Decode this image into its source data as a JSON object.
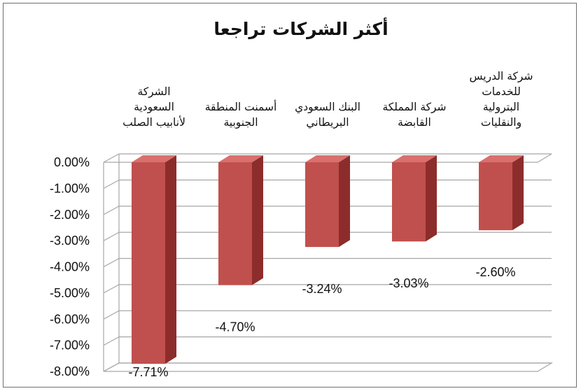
{
  "chart_data": {
    "type": "bar",
    "title": "أكثر الشركات تراجعا",
    "categories": [
      [
        "الشركة",
        "السعودية",
        "لأنابيب الصلب"
      ],
      [
        "أسمنت المنطقة",
        "الجنوبية"
      ],
      [
        "البنك السعودي",
        "البريطاني"
      ],
      [
        "شركة المملكة",
        "القابضة"
      ],
      [
        "شركة الدريس",
        "للخدمات",
        "البترولية",
        "والنقليات"
      ]
    ],
    "values": [
      -7.71,
      -4.7,
      -3.24,
      -3.03,
      -2.6
    ],
    "data_labels": [
      "-7.71%",
      "-4.70%",
      "-3.24%",
      "-3.03%",
      "-2.60%"
    ],
    "ylim": [
      -8,
      0
    ],
    "yticks": [
      0,
      -1,
      -2,
      -3,
      -4,
      -5,
      -6,
      -7,
      -8
    ],
    "ytick_labels": [
      "0.00%",
      "-1.00%",
      "-2.00%",
      "-3.00%",
      "-4.00%",
      "-5.00%",
      "-6.00%",
      "-7.00%",
      "-8.00%"
    ],
    "grid": true,
    "bar_color": "#c0504d",
    "bar_side_color": "#8c2d2b",
    "bar_top_color": "#d9706d",
    "grid_color": "#a6a6a6"
  }
}
